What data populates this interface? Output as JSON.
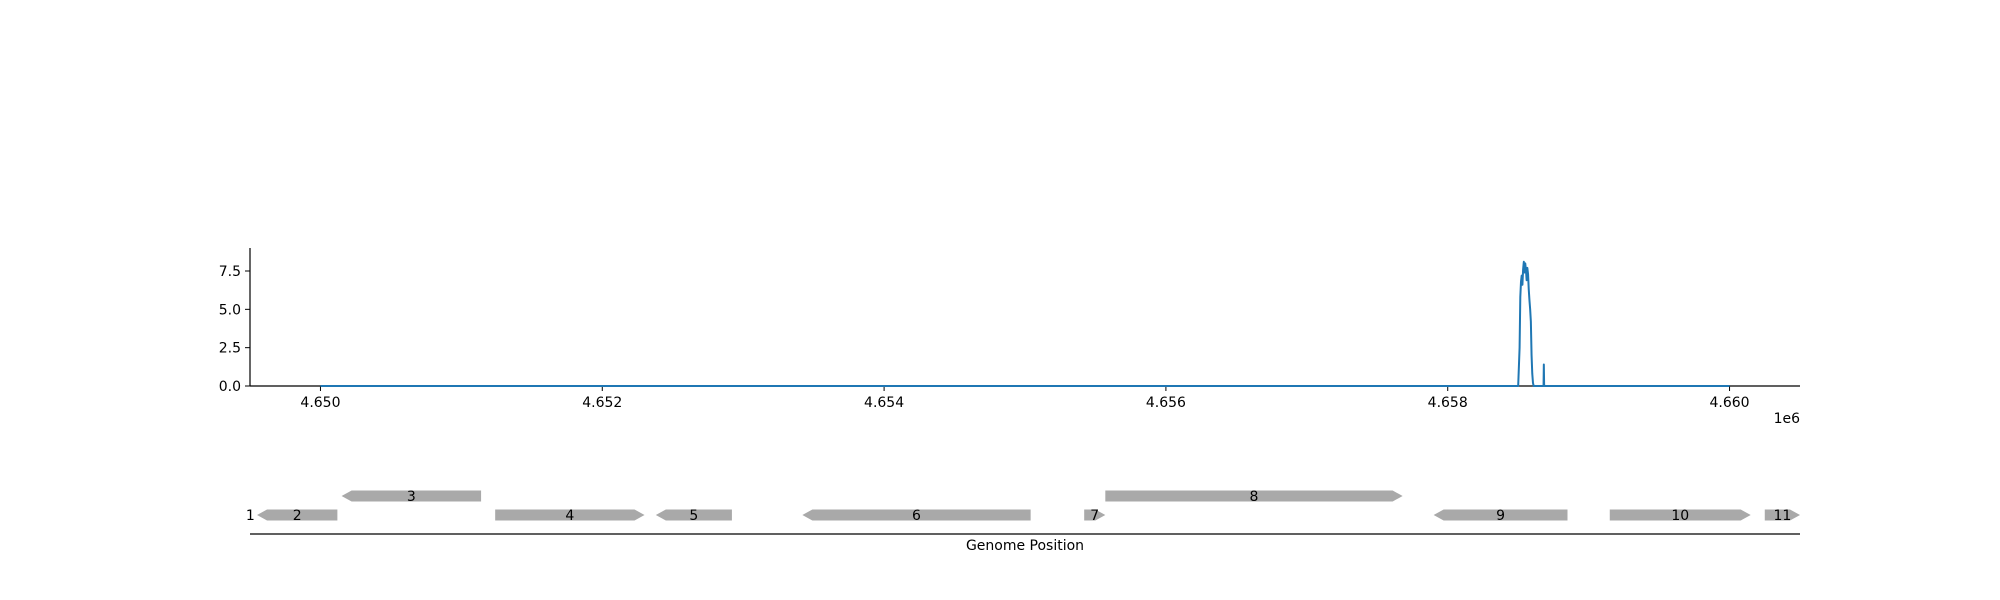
{
  "chart_data": [
    {
      "type": "line",
      "title": "",
      "xlabel": "",
      "ylabel": "",
      "xlim": [
        4649500,
        4660500
      ],
      "ylim": [
        0,
        9
      ],
      "x_offset_label": "1e6",
      "x_ticks": [
        {
          "value": 4650000,
          "label": "4.650"
        },
        {
          "value": 4652000,
          "label": "4.652"
        },
        {
          "value": 4654000,
          "label": "4.654"
        },
        {
          "value": 4656000,
          "label": "4.656"
        },
        {
          "value": 4658000,
          "label": "4.658"
        },
        {
          "value": 4660000,
          "label": "4.660"
        }
      ],
      "y_ticks": [
        {
          "value": 0,
          "label": "0.0"
        },
        {
          "value": 2.5,
          "label": "2.5"
        },
        {
          "value": 5,
          "label": "5.0"
        },
        {
          "value": 7.5,
          "label": "7.5"
        }
      ],
      "grid": false,
      "series": [
        {
          "color": "#1f77b4",
          "x": [
            4650000,
            4658500,
            4658510,
            4658515,
            4658520,
            4658525,
            4658530,
            4658535,
            4658540,
            4658545,
            4658550,
            4658555,
            4658560,
            4658565,
            4658570,
            4658575,
            4658580,
            4658585,
            4658590,
            4658595,
            4658600,
            4658605,
            4658610,
            4658680,
            4658682,
            4658684,
            4658686,
            4660000
          ],
          "y": [
            0,
            0,
            2.5,
            5.8,
            6.8,
            7.2,
            6.6,
            7.6,
            8.1,
            7.4,
            8.0,
            7.6,
            6.9,
            7.7,
            7.3,
            6.3,
            5.6,
            5.0,
            4.2,
            2.0,
            0.8,
            0.2,
            0,
            0,
            1.4,
            0.1,
            0,
            0
          ]
        }
      ]
    },
    {
      "type": "gene_track",
      "xlabel": "Genome Position",
      "xlim": [
        4649500,
        4660500
      ],
      "genes": [
        {
          "label": "1",
          "start": 4649500,
          "end": 4649505,
          "strand": "+",
          "row": 0
        },
        {
          "label": "2",
          "start": 4649550,
          "end": 4650120,
          "strand": "-",
          "row": 0
        },
        {
          "label": "3",
          "start": 4650150,
          "end": 4651140,
          "strand": "-",
          "row": 1
        },
        {
          "label": "4",
          "start": 4651240,
          "end": 4652300,
          "strand": "+",
          "row": 0
        },
        {
          "label": "5",
          "start": 4652380,
          "end": 4652920,
          "strand": "-",
          "row": 0
        },
        {
          "label": "6",
          "start": 4653420,
          "end": 4655040,
          "strand": "-",
          "row": 0
        },
        {
          "label": "7",
          "start": 4655420,
          "end": 4655570,
          "strand": "+",
          "row": 0
        },
        {
          "label": "8",
          "start": 4655570,
          "end": 4657680,
          "strand": "+",
          "row": 1
        },
        {
          "label": "9",
          "start": 4657900,
          "end": 4658850,
          "strand": "-",
          "row": 0
        },
        {
          "label": "10",
          "start": 4659150,
          "end": 4660150,
          "strand": "+",
          "row": 0
        },
        {
          "label": "11",
          "start": 4660250,
          "end": 4660500,
          "strand": "+",
          "row": 0
        }
      ],
      "gene_color": "#a9a9a9"
    }
  ]
}
